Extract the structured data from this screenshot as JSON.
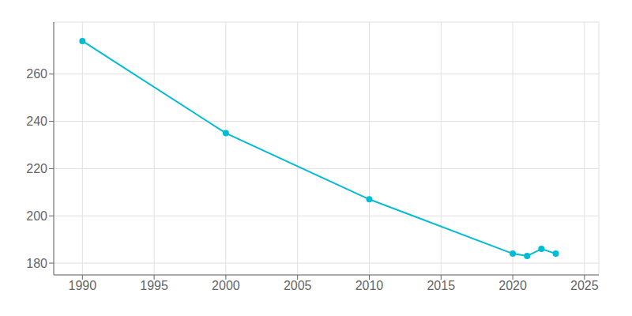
{
  "chart_data": {
    "type": "line",
    "x": [
      1990,
      2000,
      2010,
      2020,
      2021,
      2022,
      2023
    ],
    "values": [
      274,
      235,
      207,
      184,
      183,
      186,
      184
    ],
    "color": "#00BCD4",
    "marker": "circle",
    "xlim": [
      1988,
      2026
    ],
    "ylim": [
      175,
      282
    ],
    "xticks": [
      1990,
      1995,
      2000,
      2005,
      2010,
      2015,
      2020,
      2025
    ],
    "yticks": [
      180,
      200,
      220,
      240,
      260
    ],
    "grid": true
  }
}
